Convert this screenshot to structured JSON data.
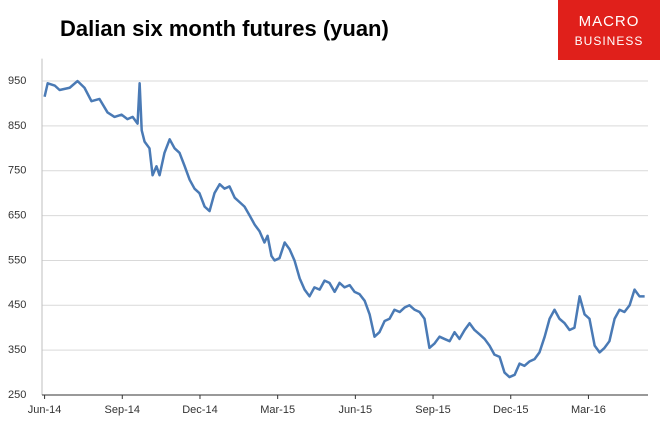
{
  "chart_data": {
    "type": "line",
    "title": "Dalian six month futures (yuan)",
    "brand": [
      "MACRO",
      "BUSINESS"
    ],
    "xlim": [
      -0.1,
      23.3
    ],
    "xticks": [
      {
        "value": 0,
        "label": "Jun-14"
      },
      {
        "value": 3,
        "label": "Sep-14"
      },
      {
        "value": 6,
        "label": "Dec-14"
      },
      {
        "value": 9,
        "label": "Mar-15"
      },
      {
        "value": 12,
        "label": "Jun-15"
      },
      {
        "value": 15,
        "label": "Sep-15"
      },
      {
        "value": 18,
        "label": "Dec-15"
      },
      {
        "value": 21,
        "label": "Mar-16"
      }
    ],
    "ylim": [
      250,
      1000
    ],
    "yticks": [
      250,
      350,
      450,
      550,
      650,
      750,
      850,
      950
    ],
    "grid": true,
    "x": [
      0,
      0.12,
      0.39,
      0.58,
      0.97,
      1.27,
      1.54,
      1.81,
      2.12,
      2.43,
      2.7,
      2.97,
      3.2,
      3.4,
      3.59,
      3.67,
      3.75,
      3.86,
      4.05,
      4.17,
      4.32,
      4.44,
      4.63,
      4.83,
      5.02,
      5.21,
      5.41,
      5.6,
      5.79,
      5.98,
      6.18,
      6.37,
      6.56,
      6.76,
      6.95,
      7.14,
      7.34,
      7.53,
      7.72,
      7.92,
      8.11,
      8.3,
      8.49,
      8.61,
      8.76,
      8.88,
      9.07,
      9.27,
      9.46,
      9.65,
      9.85,
      10.04,
      10.23,
      10.42,
      10.62,
      10.81,
      11.0,
      11.2,
      11.39,
      11.58,
      11.78,
      11.97,
      12.16,
      12.36,
      12.55,
      12.74,
      12.93,
      13.13,
      13.32,
      13.51,
      13.71,
      13.9,
      14.09,
      14.29,
      14.48,
      14.67,
      14.86,
      15.06,
      15.25,
      15.44,
      15.64,
      15.83,
      16.02,
      16.22,
      16.41,
      16.6,
      16.8,
      16.99,
      17.18,
      17.37,
      17.57,
      17.76,
      17.95,
      18.15,
      18.34,
      18.53,
      18.73,
      18.92,
      19.11,
      19.31,
      19.5,
      19.69,
      19.88,
      20.08,
      20.27,
      20.46,
      20.66,
      20.85,
      21.04,
      21.24,
      21.43,
      21.62,
      21.81,
      22.01,
      22.2,
      22.39,
      22.59,
      22.78,
      22.97,
      23.17
    ],
    "series": [
      {
        "name": "Dalian six month futures",
        "color": "#4a7ab5",
        "values": [
          915,
          945,
          940,
          930,
          935,
          950,
          935,
          905,
          910,
          880,
          870,
          875,
          865,
          870,
          855,
          945,
          840,
          815,
          800,
          740,
          760,
          740,
          790,
          820,
          800,
          790,
          760,
          730,
          710,
          700,
          670,
          660,
          700,
          720,
          710,
          715,
          690,
          680,
          670,
          650,
          630,
          615,
          590,
          605,
          560,
          550,
          555,
          590,
          575,
          550,
          510,
          485,
          470,
          490,
          485,
          505,
          500,
          480,
          500,
          490,
          495,
          480,
          475,
          460,
          430,
          380,
          390,
          415,
          420,
          440,
          435,
          445,
          450,
          440,
          435,
          420,
          355,
          365,
          380,
          375,
          370,
          390,
          375,
          395,
          410,
          395,
          385,
          375,
          360,
          340,
          335,
          300,
          290,
          295,
          320,
          315,
          325,
          330,
          345,
          380,
          420,
          440,
          420,
          410,
          395,
          400,
          470,
          430,
          420,
          360,
          345,
          355,
          370,
          420,
          440,
          435,
          450,
          485,
          470,
          470
        ]
      }
    ]
  }
}
